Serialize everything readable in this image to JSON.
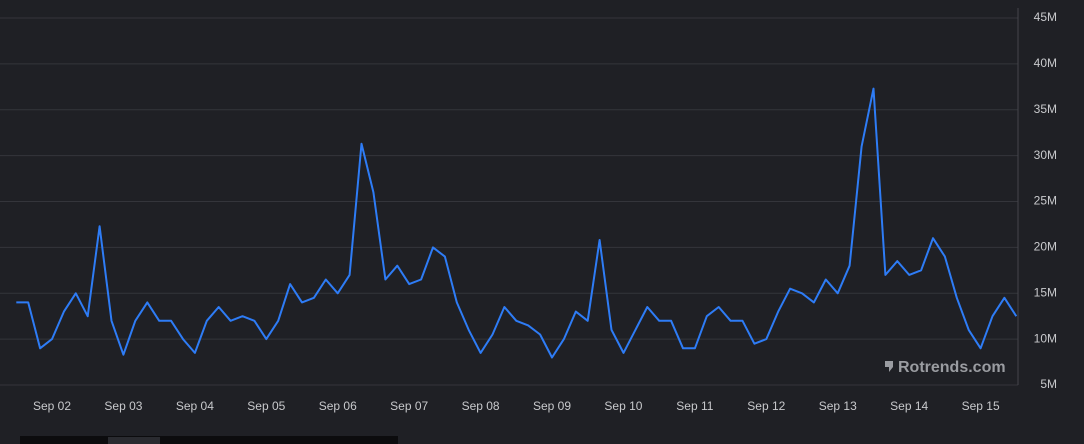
{
  "chart_data": {
    "type": "line",
    "watermark": "Rotrends.com",
    "categories": [
      null,
      null,
      null,
      "Sep 02",
      null,
      null,
      null,
      null,
      null,
      "Sep 03",
      null,
      null,
      null,
      null,
      null,
      "Sep 04",
      null,
      null,
      null,
      null,
      null,
      "Sep 05",
      null,
      null,
      null,
      null,
      null,
      "Sep 06",
      null,
      null,
      null,
      null,
      null,
      "Sep 07",
      null,
      null,
      null,
      null,
      null,
      "Sep 08",
      null,
      null,
      null,
      null,
      null,
      "Sep 09",
      null,
      null,
      null,
      null,
      null,
      "Sep 10",
      null,
      null,
      null,
      null,
      null,
      "Sep 11",
      null,
      null,
      null,
      null,
      null,
      "Sep 12",
      null,
      null,
      null,
      null,
      null,
      "Sep 13",
      null,
      null,
      null,
      null,
      null,
      "Sep 14",
      null,
      null,
      null,
      null,
      null,
      "Sep 15",
      null,
      null,
      null
    ],
    "series": [
      {
        "color": "#2e7cf6",
        "values": [
          14,
          14,
          9,
          10,
          13,
          15,
          12.5,
          22.3,
          12,
          8.3,
          12,
          14,
          12,
          12,
          10,
          8.5,
          12,
          13.5,
          12,
          12.5,
          12,
          10,
          12,
          16,
          14,
          14.5,
          16.5,
          15,
          17,
          31.3,
          26,
          16.5,
          18,
          16,
          16.5,
          20,
          19,
          14,
          11,
          8.5,
          10.5,
          13.5,
          12,
          11.5,
          10.5,
          8,
          10,
          13,
          12,
          20.8,
          11,
          8.5,
          11,
          13.5,
          12,
          12,
          9,
          9,
          12.5,
          13.5,
          12,
          12,
          9.5,
          10,
          13,
          15.5,
          15,
          14,
          16.5,
          15,
          18,
          31,
          37.3,
          17,
          18.5,
          17,
          17.5,
          21,
          19,
          14.5,
          11,
          9,
          12.5,
          14.5,
          12.5
        ]
      }
    ],
    "ylim": [
      5,
      45
    ],
    "yticks": [
      {
        "value": 5,
        "label": "5M"
      },
      {
        "value": 10,
        "label": "10M"
      },
      {
        "value": 15,
        "label": "15M"
      },
      {
        "value": 20,
        "label": "20M"
      },
      {
        "value": 25,
        "label": "25M"
      },
      {
        "value": 30,
        "label": "30M"
      },
      {
        "value": 35,
        "label": "35M"
      },
      {
        "value": 40,
        "label": "40M"
      },
      {
        "value": 45,
        "label": "45M"
      }
    ],
    "grid": true
  }
}
